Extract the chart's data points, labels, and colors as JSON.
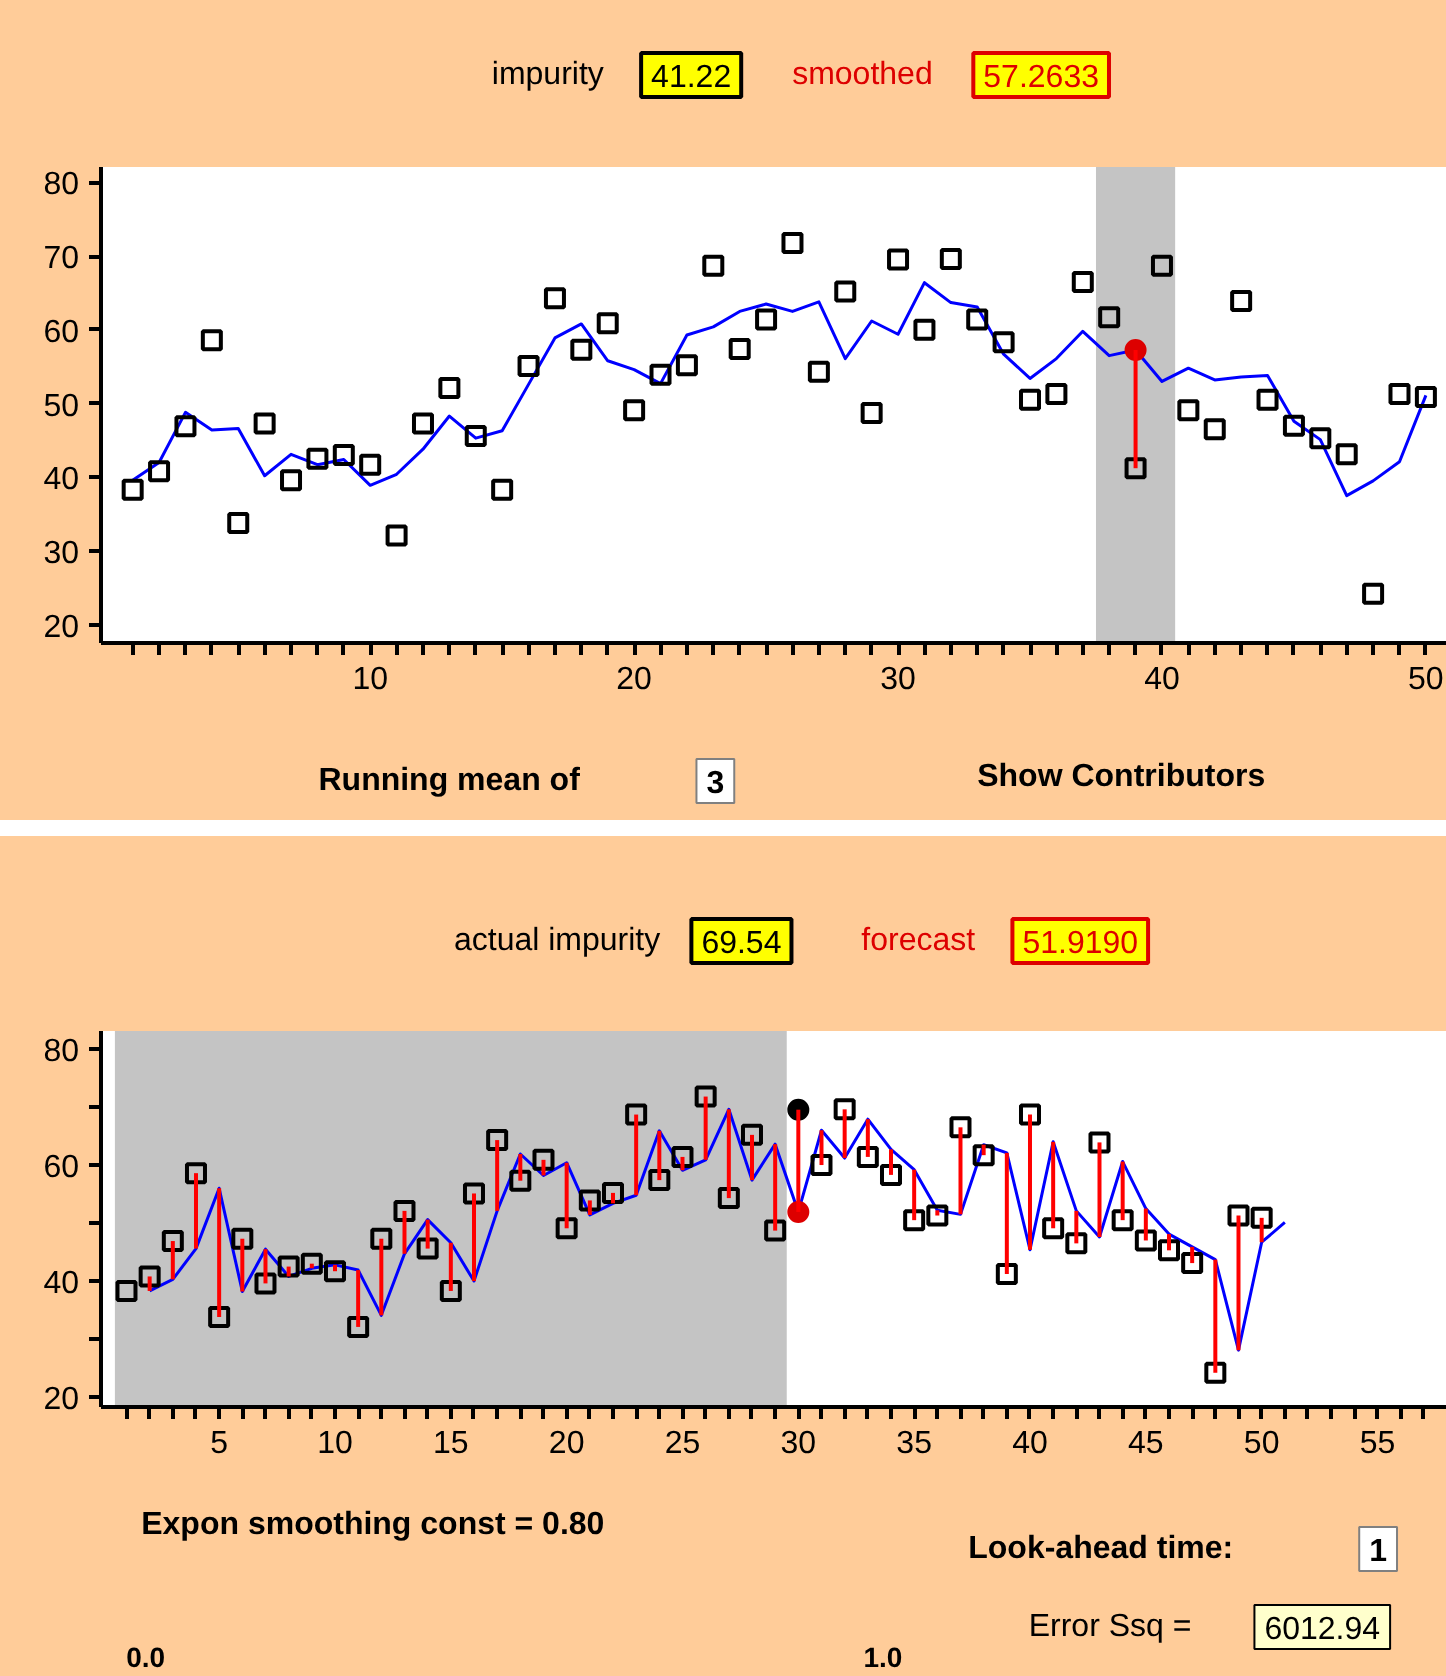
{
  "chart_data": [
    {
      "type": "line",
      "x": [
        1,
        2,
        3,
        4,
        5,
        6,
        7,
        8,
        9,
        10,
        11,
        12,
        13,
        14,
        15,
        16,
        17,
        18,
        19,
        20,
        21,
        22,
        23,
        24,
        25,
        26,
        27,
        28,
        29,
        30,
        31,
        32,
        33,
        34,
        35,
        36,
        37,
        38,
        39,
        40,
        41,
        42,
        43,
        44,
        45,
        46,
        47,
        48,
        49,
        50
      ],
      "series": [
        {
          "type": "scatter",
          "marker": "square",
          "color": "#000000",
          "values": [
            38.3,
            40.8,
            46.9,
            58.6,
            33.8,
            47.3,
            39.6,
            42.5,
            43.0,
            41.7,
            32.1,
            47.3,
            52.1,
            45.6,
            38.3,
            55.1,
            64.3,
            57.3,
            60.9,
            49.1,
            53.9,
            55.2,
            68.7,
            57.4,
            61.4,
            71.8,
            54.3,
            65.2,
            48.7,
            69.54,
            60.0,
            69.6,
            61.4,
            58.3,
            50.5,
            51.3,
            66.5,
            61.7,
            41.22,
            68.7,
            49.1,
            46.5,
            63.9,
            50.5,
            47.0,
            45.3,
            43.1,
            24.2,
            51.3,
            50.9
          ]
        },
        {
          "color": "#0000ff",
          "values": [
            39.6,
            42.0,
            48.8,
            46.4,
            46.6,
            40.2,
            43.1,
            41.7,
            42.4,
            38.9,
            40.4,
            43.8,
            48.3,
            45.3,
            46.3,
            52.6,
            58.9,
            60.8,
            55.8,
            54.6,
            52.7,
            59.3,
            60.4,
            62.5,
            63.5,
            62.5,
            63.8,
            56.1,
            61.2,
            59.4,
            66.4,
            63.7,
            63.1,
            56.7,
            53.4,
            56.1,
            59.8,
            56.5,
            57.2633,
            53.0,
            54.8,
            53.2,
            53.6,
            53.8,
            47.6,
            45.1,
            37.5,
            39.5,
            42.1,
            51.1
          ],
          "errors": [
            null,
            null,
            null,
            null,
            null,
            null,
            null,
            null,
            null,
            null,
            null,
            null,
            null,
            null,
            null,
            null,
            null,
            null,
            null,
            null,
            null,
            null,
            null,
            null,
            null,
            null,
            null,
            null,
            null,
            null,
            null,
            null,
            null,
            null,
            null,
            null,
            null,
            null,
            [
              41.22,
              57.2633
            ],
            null,
            null,
            null,
            null,
            null,
            null,
            null,
            null,
            null,
            null,
            null
          ]
        },
        {
          "type": "scatter",
          "marker": "circle",
          "color": "#dd0000",
          "x": [
            39
          ],
          "values": [
            57.2633
          ]
        }
      ],
      "bands": [
        {
          "axis": "x",
          "from": 37.5,
          "to": 40.5,
          "color": "#c4c4c4"
        }
      ],
      "xlim": [
        -0.2,
        50.8
      ],
      "ylim": [
        17.5,
        82.1
      ],
      "xticks": [
        {
          "value": 1,
          "label": null
        },
        {
          "value": 2,
          "label": null
        },
        {
          "value": 3,
          "label": null
        },
        {
          "value": 4,
          "label": null
        },
        {
          "value": 5,
          "label": null
        },
        {
          "value": 6,
          "label": null
        },
        {
          "value": 7,
          "label": null
        },
        {
          "value": 8,
          "label": null
        },
        {
          "value": 9,
          "label": null
        },
        10,
        {
          "value": 11,
          "label": null
        },
        {
          "value": 12,
          "label": null
        },
        {
          "value": 13,
          "label": null
        },
        {
          "value": 14,
          "label": null
        },
        {
          "value": 15,
          "label": null
        },
        {
          "value": 16,
          "label": null
        },
        {
          "value": 17,
          "label": null
        },
        {
          "value": 18,
          "label": null
        },
        {
          "value": 19,
          "label": null
        },
        20,
        {
          "value": 21,
          "label": null
        },
        {
          "value": 22,
          "label": null
        },
        {
          "value": 23,
          "label": null
        },
        {
          "value": 24,
          "label": null
        },
        {
          "value": 25,
          "label": null
        },
        {
          "value": 26,
          "label": null
        },
        {
          "value": 27,
          "label": null
        },
        {
          "value": 28,
          "label": null
        },
        {
          "value": 29,
          "label": null
        },
        30,
        {
          "value": 31,
          "label": null
        },
        {
          "value": 32,
          "label": null
        },
        {
          "value": 33,
          "label": null
        },
        {
          "value": 34,
          "label": null
        },
        {
          "value": 35,
          "label": null
        },
        {
          "value": 36,
          "label": null
        },
        {
          "value": 37,
          "label": null
        },
        {
          "value": 38,
          "label": null
        },
        {
          "value": 39,
          "label": null
        },
        40,
        {
          "value": 41,
          "label": null
        },
        {
          "value": 42,
          "label": null
        },
        {
          "value": 43,
          "label": null
        },
        {
          "value": 44,
          "label": null
        },
        {
          "value": 45,
          "label": null
        },
        {
          "value": 46,
          "label": null
        },
        {
          "value": 47,
          "label": null
        },
        {
          "value": 48,
          "label": null
        },
        {
          "value": 49,
          "label": null
        },
        50
      ],
      "yticks": [
        20,
        30,
        40,
        50,
        60,
        70,
        80
      ],
      "annotations": [
        "impurity",
        "41.22",
        "smoothed",
        "57.2633",
        "Running mean of",
        "3",
        "Show Contributors"
      ]
    },
    {
      "type": "line",
      "x": [
        1,
        2,
        3,
        4,
        5,
        6,
        7,
        8,
        9,
        10,
        11,
        12,
        13,
        14,
        15,
        16,
        17,
        18,
        19,
        20,
        21,
        22,
        23,
        24,
        25,
        26,
        27,
        28,
        29,
        30,
        31,
        32,
        33,
        34,
        35,
        36,
        37,
        38,
        39,
        40,
        41,
        42,
        43,
        44,
        45,
        46,
        47,
        48,
        49,
        50
      ],
      "series": [
        {
          "color": "#0000ff",
          "x": [
            2,
            3,
            4,
            5,
            6,
            7,
            8,
            9,
            10,
            11,
            12,
            13,
            14,
            15,
            16,
            17,
            18,
            19,
            20,
            21,
            22,
            23,
            24,
            25,
            26,
            27,
            28,
            29,
            30,
            31,
            32,
            33,
            34,
            35,
            36,
            37,
            38,
            39,
            40,
            41,
            42,
            43,
            44,
            45,
            46,
            47,
            48,
            49,
            50,
            51
          ],
          "values": [
            38.3,
            40.3,
            45.6,
            56.0,
            38.2,
            45.5,
            40.8,
            42.2,
            42.8,
            41.9,
            34.1,
            44.7,
            50.6,
            46.6,
            40.0,
            52.1,
            61.9,
            58.2,
            60.4,
            51.4,
            53.4,
            54.8,
            65.9,
            59.1,
            60.9,
            69.6,
            57.4,
            63.6,
            51.919,
            66.0,
            61.2,
            67.9,
            62.7,
            59.2,
            52.2,
            51.5,
            63.5,
            62.1,
            45.4,
            64.0,
            52.1,
            47.6,
            60.6,
            52.5,
            48.1,
            45.9,
            43.7,
            28.1,
            46.7,
            50.1
          ],
          "errors": [
            [
              38.3,
              40.8
            ],
            [
              40.3,
              46.9
            ],
            [
              45.6,
              58.6
            ],
            [
              33.8,
              56.0
            ],
            [
              38.2,
              47.3
            ],
            [
              39.6,
              45.5
            ],
            [
              40.8,
              42.5
            ],
            [
              42.2,
              43.0
            ],
            [
              41.7,
              42.8
            ],
            [
              32.1,
              41.9
            ],
            [
              34.1,
              47.3
            ],
            [
              44.7,
              52.1
            ],
            [
              45.6,
              50.6
            ],
            [
              38.3,
              46.6
            ],
            [
              40.0,
              55.1
            ],
            [
              52.1,
              64.3
            ],
            [
              57.3,
              61.9
            ],
            [
              58.2,
              60.9
            ],
            [
              49.1,
              60.4
            ],
            [
              51.4,
              53.9
            ],
            [
              53.4,
              55.2
            ],
            [
              54.8,
              68.7
            ],
            [
              57.4,
              65.9
            ],
            [
              59.1,
              61.4
            ],
            [
              60.9,
              71.8
            ],
            [
              54.3,
              69.6
            ],
            [
              57.4,
              65.2
            ],
            [
              48.7,
              63.6
            ],
            [
              51.919,
              69.54
            ],
            [
              60.0,
              66.0
            ],
            [
              61.2,
              69.6
            ],
            [
              61.4,
              67.9
            ],
            [
              58.3,
              62.7
            ],
            [
              50.5,
              59.2
            ],
            [
              51.3,
              52.2
            ],
            [
              51.5,
              66.5
            ],
            [
              61.7,
              63.5
            ],
            [
              41.22,
              62.1
            ],
            [
              45.4,
              68.7
            ],
            [
              49.1,
              64.0
            ],
            [
              46.5,
              52.1
            ],
            [
              47.6,
              63.9
            ],
            [
              50.5,
              60.6
            ],
            [
              47.0,
              52.5
            ],
            [
              45.3,
              48.1
            ],
            [
              43.1,
              45.9
            ],
            [
              24.2,
              43.7
            ],
            [
              28.1,
              51.3
            ],
            [
              46.7,
              50.9
            ],
            null
          ]
        },
        {
          "type": "scatter",
          "marker": "square",
          "color": "#000000",
          "values": [
            38.3,
            40.8,
            46.9,
            58.6,
            33.8,
            47.3,
            39.6,
            42.5,
            43.0,
            41.7,
            32.1,
            47.3,
            52.1,
            45.6,
            38.3,
            55.1,
            64.3,
            57.3,
            60.9,
            49.1,
            53.9,
            55.2,
            68.7,
            57.4,
            61.4,
            71.8,
            54.3,
            65.2,
            48.7,
            null,
            60.0,
            69.6,
            61.4,
            58.3,
            50.5,
            51.3,
            66.5,
            61.7,
            41.22,
            68.7,
            49.1,
            46.5,
            63.9,
            50.5,
            47.0,
            45.3,
            43.1,
            24.2,
            51.3,
            50.9
          ]
        },
        {
          "type": "scatter",
          "marker": "circle",
          "color": "#000000",
          "x": [
            30
          ],
          "values": [
            69.54
          ]
        },
        {
          "type": "scatter",
          "marker": "circle",
          "color": "#dd0000",
          "x": [
            30
          ],
          "values": [
            51.919
          ]
        }
      ],
      "bands": [
        {
          "axis": "x",
          "from": 0.5,
          "to": 29.5,
          "color": "#c4c4c4"
        }
      ],
      "xlim": [
        -0.1,
        58.0
      ],
      "ylim": [
        18.3,
        83.1
      ],
      "xticks": [
        {
          "value": 1,
          "label": null
        },
        {
          "value": 2,
          "label": null
        },
        {
          "value": 3,
          "label": null
        },
        {
          "value": 4,
          "label": null
        },
        5,
        {
          "value": 6,
          "label": null
        },
        {
          "value": 7,
          "label": null
        },
        {
          "value": 8,
          "label": null
        },
        {
          "value": 9,
          "label": null
        },
        10,
        {
          "value": 11,
          "label": null
        },
        {
          "value": 12,
          "label": null
        },
        {
          "value": 13,
          "label": null
        },
        {
          "value": 14,
          "label": null
        },
        15,
        {
          "value": 16,
          "label": null
        },
        {
          "value": 17,
          "label": null
        },
        {
          "value": 18,
          "label": null
        },
        {
          "value": 19,
          "label": null
        },
        20,
        {
          "value": 21,
          "label": null
        },
        {
          "value": 22,
          "label": null
        },
        {
          "value": 23,
          "label": null
        },
        {
          "value": 24,
          "label": null
        },
        25,
        {
          "value": 26,
          "label": null
        },
        {
          "value": 27,
          "label": null
        },
        {
          "value": 28,
          "label": null
        },
        {
          "value": 29,
          "label": null
        },
        30,
        {
          "value": 31,
          "label": null
        },
        {
          "value": 32,
          "label": null
        },
        {
          "value": 33,
          "label": null
        },
        {
          "value": 34,
          "label": null
        },
        35,
        {
          "value": 36,
          "label": null
        },
        {
          "value": 37,
          "label": null
        },
        {
          "value": 38,
          "label": null
        },
        {
          "value": 39,
          "label": null
        },
        40,
        {
          "value": 41,
          "label": null
        },
        {
          "value": 42,
          "label": null
        },
        {
          "value": 43,
          "label": null
        },
        {
          "value": 44,
          "label": null
        },
        45,
        {
          "value": 46,
          "label": null
        },
        {
          "value": 47,
          "label": null
        },
        {
          "value": 48,
          "label": null
        },
        {
          "value": 49,
          "label": null
        },
        50,
        {
          "value": 51,
          "label": null
        },
        {
          "value": 52,
          "label": null
        },
        {
          "value": 53,
          "label": null
        },
        {
          "value": 54,
          "label": null
        },
        55,
        {
          "value": 56,
          "label": null
        },
        {
          "value": 57,
          "label": null
        }
      ],
      "yticks": [
        20,
        {
          "value": 30,
          "label": null
        },
        40,
        {
          "value": 50,
          "label": null
        },
        60,
        {
          "value": 70,
          "label": null
        },
        80
      ],
      "annotations": [
        "actual impurity",
        "69.54",
        "forecast",
        "51.9190",
        "Expon smoothing const = 0.80",
        "0.0",
        "1.0",
        "Look-ahead time:",
        "1",
        "Error Ssq =",
        "6012.94"
      ]
    }
  ]
}
